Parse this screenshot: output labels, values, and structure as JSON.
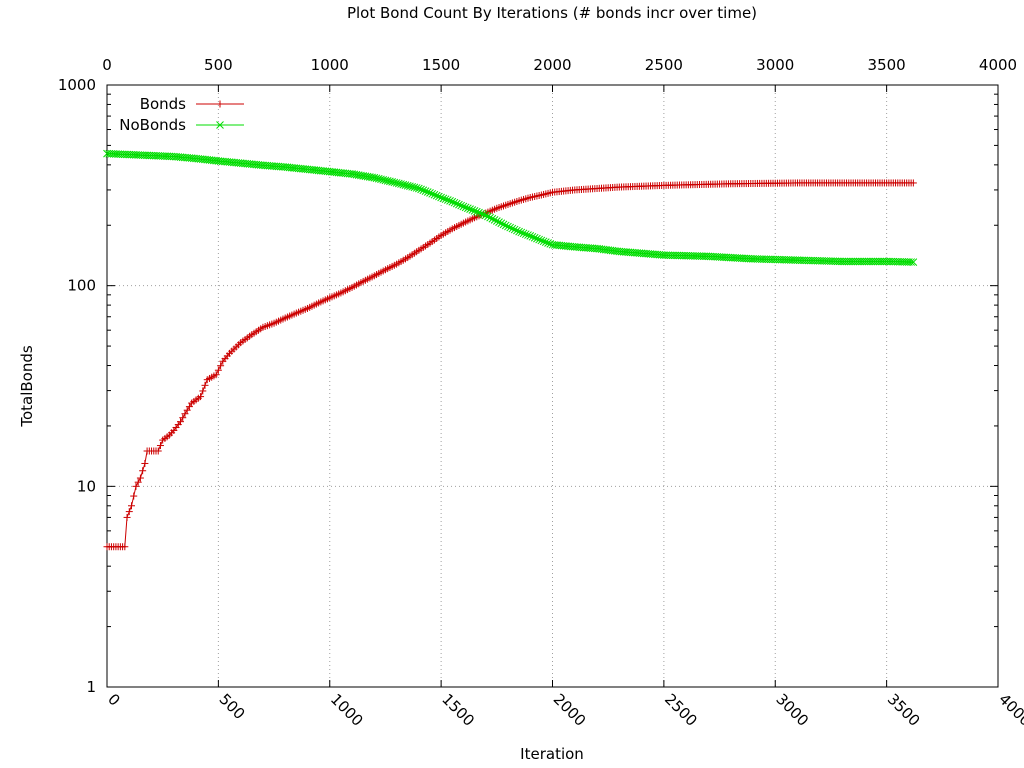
{
  "chart_data": {
    "type": "line",
    "title": "Plot Bond Count By Iterations (# bonds incr over time)",
    "xlabel": "Iteration",
    "ylabel": "TotalBonds",
    "xlim": [
      0,
      4000
    ],
    "ylim": [
      1,
      1000
    ],
    "yscale": "log",
    "grid": true,
    "legend_position": "top-left",
    "x_ticks": [
      0,
      500,
      1000,
      1500,
      2000,
      2500,
      3000,
      3500,
      4000
    ],
    "y_ticks": [
      1,
      10,
      100,
      1000
    ],
    "x_tick_labels": [
      "0",
      "500",
      "1000",
      "1500",
      "2000",
      "2500",
      "3000",
      "3500",
      "4000"
    ],
    "y_tick_labels": [
      "1",
      "10",
      "100",
      "1000"
    ],
    "series": [
      {
        "name": "Bonds",
        "color": "#cc0000",
        "marker": "plus",
        "points": [
          [
            0,
            5
          ],
          [
            80,
            5
          ],
          [
            90,
            7
          ],
          [
            110,
            8
          ],
          [
            130,
            10
          ],
          [
            150,
            11
          ],
          [
            170,
            13
          ],
          [
            180,
            15
          ],
          [
            230,
            15
          ],
          [
            250,
            17
          ],
          [
            280,
            18
          ],
          [
            300,
            19
          ],
          [
            330,
            21
          ],
          [
            350,
            23
          ],
          [
            380,
            26
          ],
          [
            420,
            28
          ],
          [
            450,
            34
          ],
          [
            490,
            36
          ],
          [
            520,
            42
          ],
          [
            550,
            46
          ],
          [
            600,
            52
          ],
          [
            650,
            57
          ],
          [
            700,
            62
          ],
          [
            750,
            65
          ],
          [
            800,
            69
          ],
          [
            850,
            73
          ],
          [
            900,
            77
          ],
          [
            950,
            82
          ],
          [
            1000,
            87
          ],
          [
            1050,
            92
          ],
          [
            1100,
            98
          ],
          [
            1150,
            105
          ],
          [
            1200,
            112
          ],
          [
            1250,
            120
          ],
          [
            1300,
            128
          ],
          [
            1350,
            138
          ],
          [
            1400,
            150
          ],
          [
            1450,
            163
          ],
          [
            1500,
            178
          ],
          [
            1550,
            192
          ],
          [
            1600,
            205
          ],
          [
            1650,
            218
          ],
          [
            1700,
            230
          ],
          [
            1750,
            243
          ],
          [
            1800,
            254
          ],
          [
            1850,
            265
          ],
          [
            1900,
            275
          ],
          [
            1950,
            283
          ],
          [
            2000,
            292
          ],
          [
            2100,
            300
          ],
          [
            2200,
            305
          ],
          [
            2300,
            310
          ],
          [
            2400,
            313
          ],
          [
            2500,
            316
          ],
          [
            2600,
            318
          ],
          [
            2700,
            320
          ],
          [
            2800,
            322
          ],
          [
            2900,
            323
          ],
          [
            3000,
            324
          ],
          [
            3100,
            325
          ],
          [
            3200,
            325
          ],
          [
            3300,
            325
          ],
          [
            3400,
            325
          ],
          [
            3500,
            325
          ],
          [
            3620,
            325
          ]
        ]
      },
      {
        "name": "NoBonds",
        "color": "#00dd00",
        "marker": "cross",
        "points": [
          [
            0,
            455
          ],
          [
            100,
            450
          ],
          [
            200,
            445
          ],
          [
            300,
            440
          ],
          [
            400,
            430
          ],
          [
            500,
            418
          ],
          [
            600,
            408
          ],
          [
            700,
            398
          ],
          [
            800,
            390
          ],
          [
            900,
            380
          ],
          [
            1000,
            370
          ],
          [
            1100,
            360
          ],
          [
            1200,
            345
          ],
          [
            1300,
            325
          ],
          [
            1400,
            305
          ],
          [
            1450,
            290
          ],
          [
            1500,
            275
          ],
          [
            1550,
            262
          ],
          [
            1600,
            248
          ],
          [
            1650,
            236
          ],
          [
            1700,
            224
          ],
          [
            1750,
            210
          ],
          [
            1800,
            197
          ],
          [
            1850,
            186
          ],
          [
            1900,
            177
          ],
          [
            1950,
            168
          ],
          [
            2000,
            160
          ],
          [
            2100,
            156
          ],
          [
            2200,
            153
          ],
          [
            2300,
            148
          ],
          [
            2400,
            145
          ],
          [
            2500,
            142
          ],
          [
            2600,
            141
          ],
          [
            2700,
            140
          ],
          [
            2800,
            138
          ],
          [
            2900,
            136
          ],
          [
            3000,
            135
          ],
          [
            3100,
            134
          ],
          [
            3200,
            133
          ],
          [
            3300,
            132
          ],
          [
            3400,
            132
          ],
          [
            3500,
            132
          ],
          [
            3620,
            131
          ]
        ]
      }
    ]
  }
}
